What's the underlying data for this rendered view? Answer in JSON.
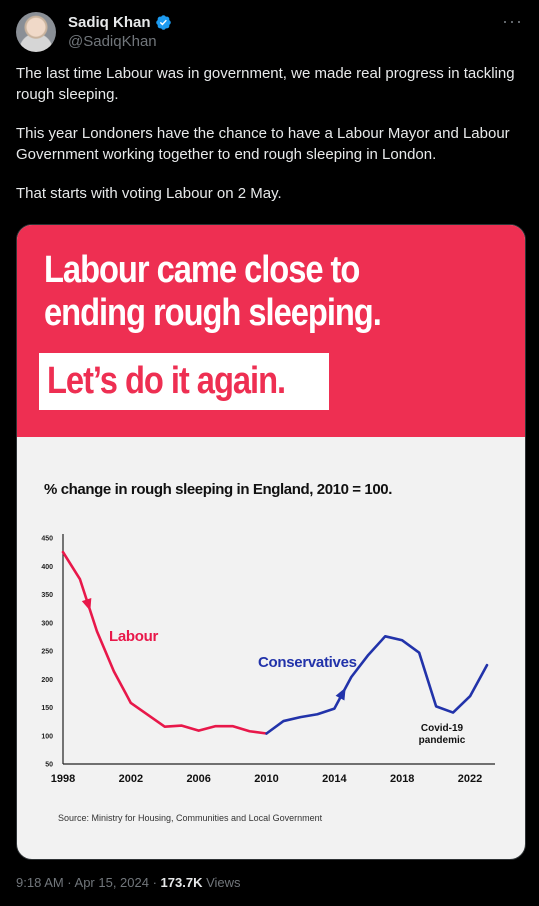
{
  "author": {
    "display_name": "Sadiq Khan",
    "handle": "@SadiqKhan"
  },
  "tweet": {
    "paragraphs": [
      "The last time Labour was in government, we made real progress in tackling rough sleeping.",
      "This year Londoners have the chance to have a Labour Mayor and Labour Government working together to end rough sleeping in London.",
      "That starts with voting Labour on 2 May."
    ]
  },
  "graphic": {
    "headline": "Labour came close to ending rough sleeping.",
    "subheadline": "Let’s do it again.",
    "source": "Source: Ministry for Housing, Communities and Local Government"
  },
  "chart_data": {
    "type": "line",
    "title": "% change in rough sleeping in England, 2010 = 100.",
    "xlabel": "",
    "ylabel": "",
    "xlim": [
      1998,
      2023
    ],
    "ylim": [
      50,
      450
    ],
    "x_ticks": [
      1998,
      2002,
      2006,
      2010,
      2014,
      2018,
      2022
    ],
    "y_ticks": [
      50,
      100,
      150,
      200,
      250,
      300,
      350,
      400,
      450
    ],
    "grid": false,
    "series": [
      {
        "name": "Labour",
        "color": "#e8184a",
        "x": [
          1998,
          1999,
          2000,
          2001,
          2002,
          2003,
          2004,
          2005,
          2006,
          2007,
          2008,
          2009,
          2010
        ],
        "values": [
          425,
          377,
          285,
          214,
          158,
          137,
          116,
          118,
          109,
          117,
          117,
          108,
          104
        ]
      },
      {
        "name": "Conservatives",
        "color": "#2233aa",
        "x": [
          2010,
          2011,
          2012,
          2013,
          2014,
          2015,
          2016,
          2017,
          2018,
          2019,
          2020,
          2021,
          2022,
          2023
        ],
        "values": [
          104,
          126,
          133,
          138,
          148,
          204,
          243,
          276,
          269,
          247,
          152,
          141,
          170,
          225
        ]
      }
    ],
    "annotations": [
      "Covid-19",
      "pandemic"
    ]
  },
  "footer": {
    "time": "9:18 AM · Apr 15, 2024 · ",
    "views_count": "173.7K",
    "views_label": " Views"
  }
}
